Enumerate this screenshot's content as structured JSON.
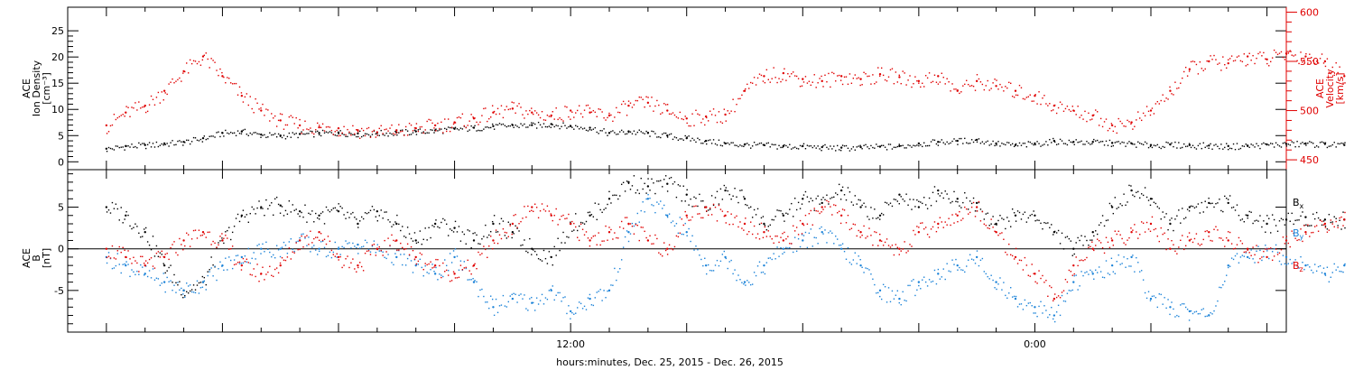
{
  "colors": {
    "black": "#000000",
    "red": "#e00000",
    "blue": "#1a82d8"
  },
  "chart_data": [
    {
      "type": "scatter",
      "panel": "plasma",
      "title": "",
      "ylabel_lines": [
        "ACE",
        "Ion Density",
        "[cm⁻³]"
      ],
      "ylim": [
        -1.5,
        29.5
      ],
      "yticks": [
        0,
        5,
        10,
        15,
        20,
        25
      ],
      "ytick_labels": [
        "0",
        "5",
        "10",
        "15",
        "20",
        "25"
      ],
      "right_axis": {
        "ylabel_lines": [
          "ACE",
          "Velocity",
          "[km/s]"
        ],
        "ylim": [
          440,
          605
        ],
        "yticks": [
          450,
          500,
          550,
          600
        ],
        "ytick_labels": [
          "450",
          "500",
          "550",
          "600"
        ],
        "color": "#e00000"
      },
      "series": [
        {
          "color": "#000000",
          "axis": "left",
          "x": [
            0,
            0.5,
            1,
            1.5,
            2,
            2.5,
            3,
            3.5,
            4,
            4.5,
            5,
            5.5,
            6,
            6.5,
            7,
            7.5,
            8,
            8.5,
            9,
            9.5,
            10,
            10.5,
            11,
            11.5,
            12,
            12.5,
            13,
            13.5,
            14,
            14.5,
            15,
            15.5,
            16,
            16.5,
            17,
            17.5,
            18,
            18.5,
            19,
            19.5,
            20,
            20.5,
            21,
            21.5,
            22,
            22.5,
            23,
            23.5,
            24,
            24.5,
            25,
            25.5,
            26,
            26.5,
            27,
            27.5,
            28,
            28.5,
            29,
            29.5,
            30,
            30.5,
            31,
            31.5,
            32
          ],
          "y": [
            2.5,
            3,
            3.2,
            3.5,
            3.8,
            4.5,
            5.5,
            5.8,
            5.2,
            5,
            5.3,
            5.5,
            5.6,
            5.4,
            5.5,
            5.6,
            5.8,
            6,
            6.3,
            6.5,
            6.8,
            7,
            7,
            7.2,
            6.8,
            6.5,
            5.5,
            5.8,
            5.5,
            5,
            4.5,
            4,
            3.5,
            3.3,
            3.2,
            3,
            3,
            2.8,
            2.7,
            2.8,
            2.9,
            3,
            3.5,
            3.8,
            4,
            4.2,
            3.5,
            3.2,
            3.5,
            4,
            3.8,
            3.8,
            3.6,
            3.5,
            3.2,
            3.3,
            3.2,
            3.1,
            3,
            3.1,
            3.3,
            3.4,
            3.5,
            3.4,
            3.2
          ]
        },
        {
          "color": "#e00000",
          "axis": "right",
          "x": [
            0,
            0.5,
            1,
            1.5,
            2,
            2.5,
            3,
            3.5,
            4,
            4.5,
            5,
            5.5,
            6,
            6.5,
            7,
            7.5,
            8,
            8.5,
            9,
            9.5,
            10,
            10.5,
            11,
            11.5,
            12,
            12.5,
            13,
            13.5,
            14,
            14.5,
            15,
            15.5,
            16,
            16.5,
            17,
            17.5,
            18,
            18.5,
            19,
            19.5,
            20,
            20.5,
            21,
            21.5,
            22,
            22.5,
            23,
            23.5,
            24,
            24.5,
            25,
            25.5,
            26,
            26.5,
            27,
            27.5,
            28,
            28.5,
            29,
            29.5,
            30,
            30.5,
            31,
            31.5,
            32
          ],
          "y": [
            485,
            498,
            505,
            520,
            540,
            555,
            535,
            515,
            500,
            490,
            485,
            483,
            482,
            480,
            478,
            480,
            482,
            485,
            488,
            492,
            498,
            502,
            498,
            495,
            500,
            498,
            495,
            505,
            508,
            500,
            492,
            494,
            496,
            520,
            535,
            538,
            532,
            530,
            535,
            532,
            537,
            534,
            530,
            535,
            520,
            530,
            525,
            520,
            515,
            505,
            500,
            495,
            485,
            488,
            500,
            520,
            542,
            550,
            548,
            555,
            552,
            558,
            555,
            550,
            535
          ]
        }
      ]
    },
    {
      "type": "scatter",
      "panel": "field",
      "title": "",
      "ylabel_lines": [
        "ACE",
        "B",
        "[nT]"
      ],
      "ylim": [
        -10,
        9.5
      ],
      "yticks": [
        -5,
        0,
        5
      ],
      "ytick_labels": [
        "-5",
        "0",
        "5"
      ],
      "zero_line": true,
      "xlabel": "hours:minutes, Dec. 25, 2015 - Dec. 26, 2015",
      "xticks_labeled": [
        {
          "x": 12,
          "label": "12:00"
        },
        {
          "x": 24,
          "label": "0:00"
        }
      ],
      "xlim": [
        -1,
        30.5
      ],
      "legend_placement": "right",
      "series": [
        {
          "name": "Bx",
          "name_main": "B",
          "name_sub": "x",
          "color": "#000000",
          "x": [
            0,
            0.5,
            1,
            1.5,
            2,
            2.5,
            3,
            3.5,
            4,
            4.5,
            5,
            5.5,
            6,
            6.5,
            7,
            7.5,
            8,
            8.5,
            9,
            9.5,
            10,
            10.5,
            11,
            11.5,
            12,
            12.5,
            13,
            13.5,
            14,
            14.5,
            15,
            15.5,
            16,
            16.5,
            17,
            17.5,
            18,
            18.5,
            19,
            19.5,
            20,
            20.5,
            21,
            21.5,
            22,
            22.5,
            23,
            23.5,
            24,
            24.5,
            25,
            25.5,
            26,
            26.5,
            27,
            27.5,
            28,
            28.5,
            29,
            29.5,
            30,
            30.5,
            31,
            31.5,
            32
          ],
          "y": [
            5,
            4,
            2,
            -2,
            -5,
            -4,
            1,
            4,
            5,
            5.2,
            4.5,
            4,
            4.5,
            3,
            4.5,
            3,
            1,
            3,
            2.5,
            1,
            3,
            2,
            0,
            -1,
            3,
            4,
            6,
            8,
            7.5,
            7.8,
            6.5,
            5,
            7,
            6,
            3,
            4,
            6,
            5.5,
            7,
            5,
            4,
            6.5,
            5,
            7,
            6,
            5.5,
            3,
            4,
            4,
            2,
            0,
            2,
            5,
            7,
            6,
            3,
            5,
            5.5,
            5.5,
            4,
            3,
            3.5,
            3.8,
            3.5,
            3.5
          ]
        },
        {
          "name": "By",
          "name_main": "B",
          "name_sub": "y",
          "color": "#1a82d8",
          "x": [
            0,
            0.5,
            1,
            1.5,
            2,
            2.5,
            3,
            3.5,
            4,
            4.5,
            5,
            5.5,
            6,
            6.5,
            7,
            7.5,
            8,
            8.5,
            9,
            9.5,
            10,
            10.5,
            11,
            11.5,
            12,
            12.5,
            13,
            13.5,
            14,
            14.5,
            15,
            15.5,
            16,
            16.5,
            17,
            17.5,
            18,
            18.5,
            19,
            19.5,
            20,
            20.5,
            21,
            21.5,
            22,
            22.5,
            23,
            23.5,
            24,
            24.5,
            25,
            25.5,
            26,
            26.5,
            27,
            27.5,
            28,
            28.5,
            29,
            29.5,
            30,
            30.5,
            31,
            31.5,
            32
          ],
          "y": [
            -1,
            -2,
            -3,
            -4,
            -5,
            -4,
            -2,
            -1,
            0,
            0,
            1,
            0,
            0,
            0.5,
            0,
            -1,
            -2,
            -3,
            -1,
            -4,
            -7,
            -6,
            -6.5,
            -5,
            -7.5,
            -6,
            -5,
            2,
            6,
            4,
            2,
            -2,
            -1,
            -4,
            -2,
            0,
            1,
            2,
            0,
            -2,
            -5,
            -6,
            -4,
            -3,
            -2,
            -1,
            -4,
            -6,
            -7,
            -8,
            -4,
            -3,
            -2,
            -1,
            -6,
            -7,
            -7.5,
            -8,
            -2,
            -1,
            0,
            -1,
            -2,
            -3,
            -2
          ]
        },
        {
          "name": "Bz",
          "name_main": "B",
          "name_sub": "z",
          "color": "#e00000",
          "x": [
            0,
            0.5,
            1,
            1.5,
            2,
            2.5,
            3,
            3.5,
            4,
            4.5,
            5,
            5.5,
            6,
            6.5,
            7,
            7.5,
            8,
            8.5,
            9,
            9.5,
            10,
            10.5,
            11,
            11.5,
            12,
            12.5,
            13,
            13.5,
            14,
            14.5,
            15,
            15.5,
            16,
            16.5,
            17,
            17.5,
            18,
            18.5,
            19,
            19.5,
            20,
            20.5,
            21,
            21.5,
            22,
            22.5,
            23,
            23.5,
            24,
            24.5,
            25,
            25.5,
            26,
            26.5,
            27,
            27.5,
            28,
            28.5,
            29,
            29.5,
            30,
            30.5,
            31,
            31.5,
            32
          ],
          "y": [
            0,
            -1,
            -2,
            -1,
            1,
            2,
            1,
            -2,
            -3,
            -2,
            1,
            2,
            -1,
            -2,
            0,
            1,
            -1,
            -2,
            -3,
            -2,
            1,
            3,
            5,
            4,
            3,
            1,
            2,
            3,
            1,
            0,
            4,
            5,
            4,
            3,
            2,
            1,
            3,
            5,
            4,
            2,
            1,
            0,
            2,
            3,
            4,
            5,
            2,
            -1,
            -3,
            -6,
            -2,
            0,
            1,
            2,
            3,
            0,
            1,
            2,
            1,
            0,
            -1,
            1,
            2,
            3,
            3.5
          ]
        }
      ]
    }
  ]
}
